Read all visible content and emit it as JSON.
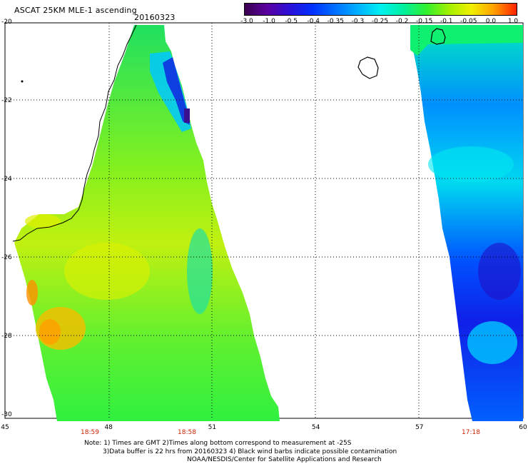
{
  "header": {
    "title": "ASCAT 25KM MLE-1 ascending",
    "date": "20160323"
  },
  "colorbar": {
    "ticks": [
      "-3.0",
      "-1.0",
      "-0.5",
      "-0.4",
      "-0.35",
      "-0.3",
      "-0.25",
      "-0.2",
      "-0.15",
      "-0.1",
      "-0.05",
      "0.0",
      "1.0"
    ],
    "colors": [
      "#3a0050",
      "#5a00a0",
      "#2a10d8",
      "#0030ff",
      "#0070ff",
      "#00b0ff",
      "#00f0f0",
      "#00f0a0",
      "#30f030",
      "#a0f000",
      "#f0f000",
      "#ffa000",
      "#ff2000"
    ]
  },
  "axes": {
    "lon_labels": [
      "45",
      "48",
      "51",
      "54",
      "57",
      "60"
    ],
    "lat_labels": [
      "-20",
      "-22",
      "-24",
      "-26",
      "-28",
      "-30"
    ],
    "lon_range": [
      45,
      60
    ],
    "lat_range": [
      -30,
      -20
    ]
  },
  "pass_times": [
    "18:59",
    "18:58",
    "17:18"
  ],
  "notes": {
    "line1": "Note: 1) Times are GMT 2)Times along bottom correspond to measurement at -25S",
    "line2": "3)Data buffer is 22 hrs from 20160323 4) Black wind barbs indicate possible contamination",
    "line3": "NOAA/NESDIS/Center for Satellite Applications and Research"
  }
}
